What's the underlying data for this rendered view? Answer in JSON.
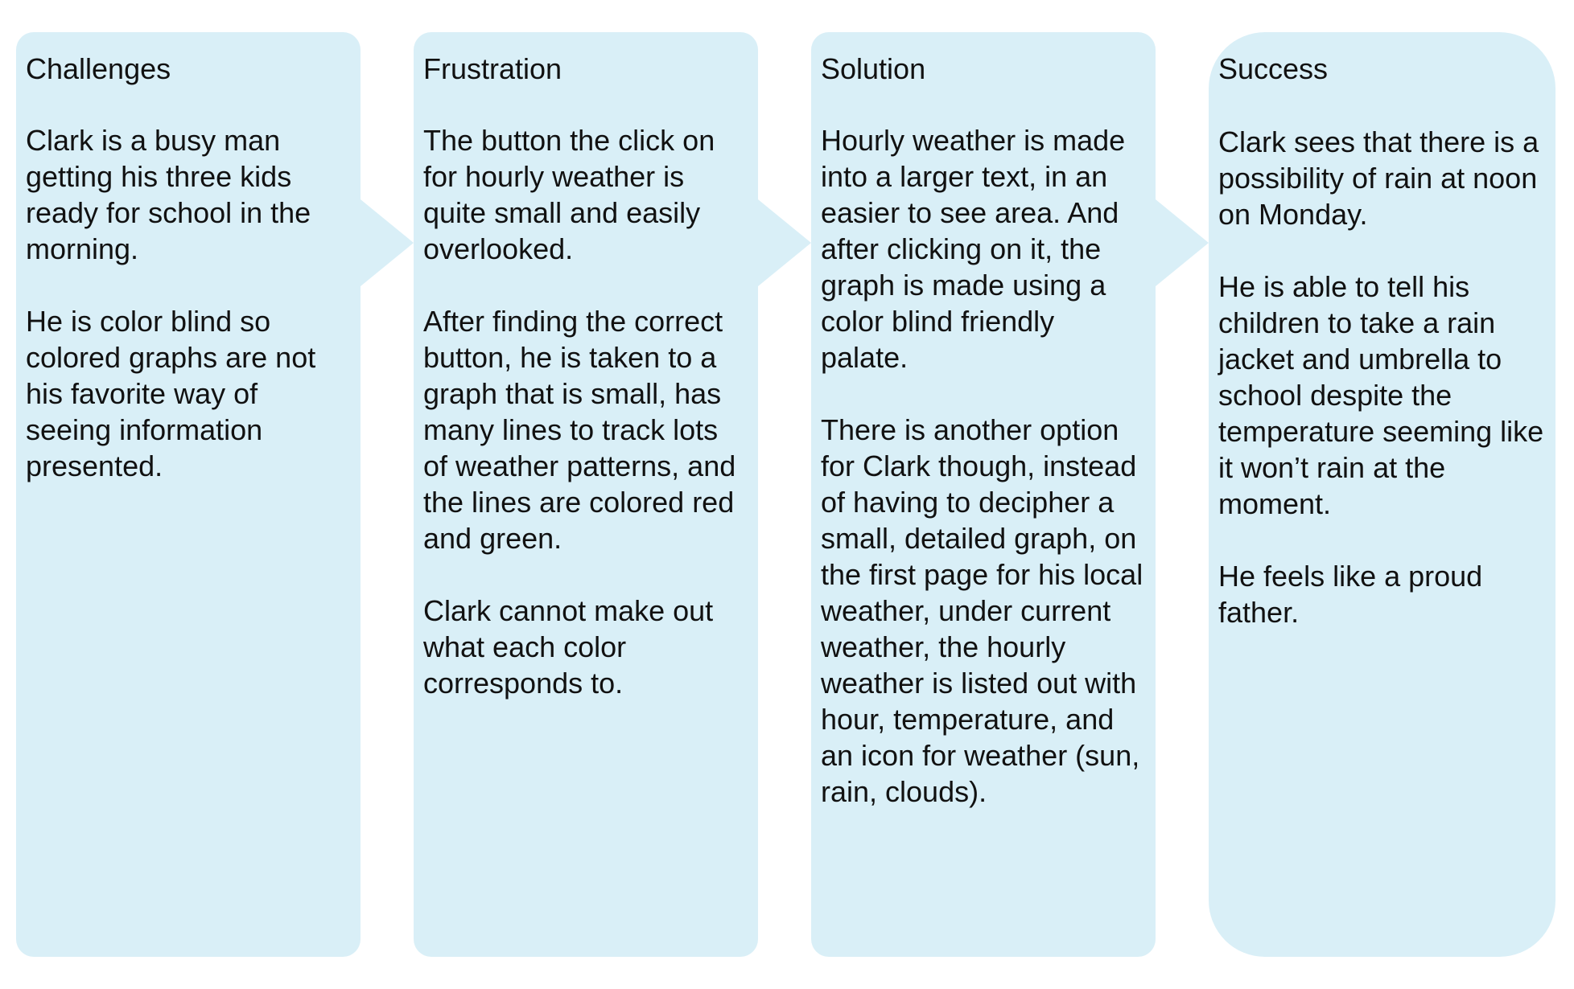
{
  "stages": [
    {
      "title": "Challenges",
      "paragraphs": [
        "Clark is a busy man getting his three kids ready for school in the morning.",
        "He is color blind so colored graphs are not his favorite way of seeing information presented."
      ]
    },
    {
      "title": "Frustration",
      "paragraphs": [
        "The button the click on for hourly weather is quite small and easily overlooked.",
        "After finding the correct button, he is taken to a graph that is small, has many lines to track lots of weather patterns, and the lines are colored red and green.",
        "Clark cannot make out what each color corresponds to."
      ]
    },
    {
      "title": "Solution",
      "paragraphs": [
        "Hourly weather is made into a larger text, in an easier to see area. And after clicking on it, the graph is made using a color blind friendly palate.",
        "There is another option for Clark though, instead of having to decipher a small, detailed graph, on the first page for his local weather, under current weather, the hourly weather is listed out with hour, temperature, and an icon for weather (sun, rain, clouds)."
      ]
    },
    {
      "title": "Success",
      "paragraphs": [
        "Clark sees that there is a possibility of rain at noon on Monday.",
        "He is able to tell his children to take a rain jacket and umbrella to school despite the temperature seeming like it won’t rain at the moment.",
        "He feels like a proud father."
      ]
    }
  ],
  "colors": {
    "card_fill": "#d9eff7",
    "text": "#111111",
    "background": "#ffffff"
  }
}
